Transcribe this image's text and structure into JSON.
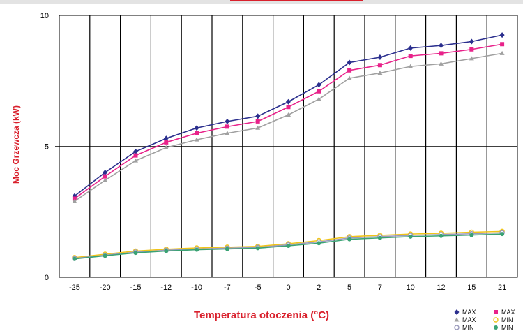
{
  "chart_data": {
    "type": "line",
    "title": "",
    "xlabel": "Temperatura otoczenia (°C)",
    "ylabel": "Moc Grzewcza (kW)",
    "categories": [
      "-25",
      "-20",
      "-15",
      "-12",
      "-10",
      "-7",
      "-5",
      "0",
      "2",
      "5",
      "7",
      "10",
      "12",
      "15",
      "21"
    ],
    "ylim": [
      0,
      10
    ],
    "yticks": [
      "0",
      "5",
      "10"
    ],
    "grid": "vertical lines between categories, horizontal line at 5",
    "legend_position": "bottom-right",
    "series": [
      {
        "name": "MAX",
        "color": "#2b2f8e",
        "marker": "diamond",
        "values": [
          3.1,
          4.0,
          4.8,
          5.3,
          5.7,
          5.95,
          6.15,
          6.7,
          7.35,
          8.2,
          8.4,
          8.75,
          8.85,
          9.0,
          9.25
        ]
      },
      {
        "name": "MAX",
        "color": "#e8228a",
        "marker": "square",
        "values": [
          3.0,
          3.85,
          4.65,
          5.15,
          5.5,
          5.75,
          5.95,
          6.5,
          7.1,
          7.9,
          8.1,
          8.45,
          8.55,
          8.7,
          8.9
        ]
      },
      {
        "name": "MAX",
        "color": "#a0a0a0",
        "marker": "triangle",
        "values": [
          2.9,
          3.7,
          4.45,
          4.95,
          5.25,
          5.5,
          5.7,
          6.2,
          6.8,
          7.6,
          7.8,
          8.05,
          8.15,
          8.35,
          8.55
        ]
      },
      {
        "name": "MIN",
        "color": "#f0c419",
        "marker": "circle-open",
        "values": [
          0.75,
          0.88,
          1.0,
          1.07,
          1.12,
          1.15,
          1.18,
          1.28,
          1.4,
          1.55,
          1.6,
          1.65,
          1.68,
          1.72,
          1.75
        ]
      },
      {
        "name": "MIN",
        "color": "#9999bb",
        "marker": "circle-open",
        "values": [
          0.72,
          0.84,
          0.96,
          1.03,
          1.08,
          1.11,
          1.14,
          1.24,
          1.35,
          1.5,
          1.55,
          1.6,
          1.63,
          1.66,
          1.7
        ]
      },
      {
        "name": "MIN",
        "color": "#3aa374",
        "marker": "circle",
        "values": [
          0.7,
          0.82,
          0.93,
          1.0,
          1.05,
          1.08,
          1.11,
          1.2,
          1.3,
          1.45,
          1.5,
          1.55,
          1.58,
          1.61,
          1.65
        ]
      }
    ]
  }
}
